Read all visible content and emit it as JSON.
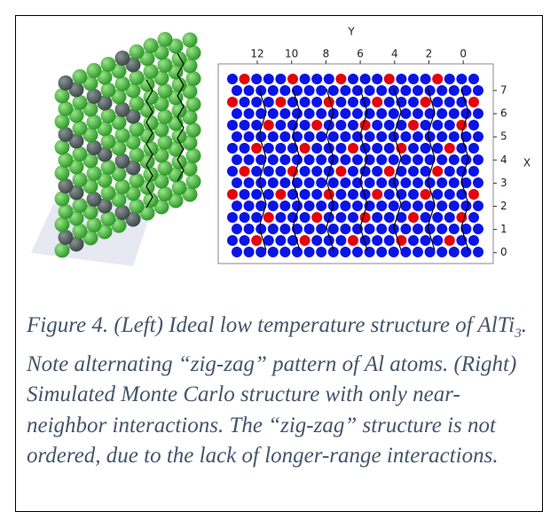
{
  "figure": {
    "right_panel": {
      "top_axis_label": "Y",
      "top_ticks": [
        12,
        10,
        8,
        6,
        4,
        2,
        0
      ],
      "right_axis_label": "X",
      "right_ticks": [
        7,
        6,
        5,
        4,
        3,
        2,
        1,
        0
      ]
    }
  },
  "caption": {
    "before_subscript": "Figure 4.  (Left) Ideal low temperature structure of AlTi",
    "subscript": "3",
    "after_subscript": ". Note alternating “zig-zag” pattern of Al atoms. (Right) Simulated Monte Carlo structure with only near-neighbor interactions. The “zig-zag” structure is not ordered, due to the lack of longer-range interactions."
  }
}
